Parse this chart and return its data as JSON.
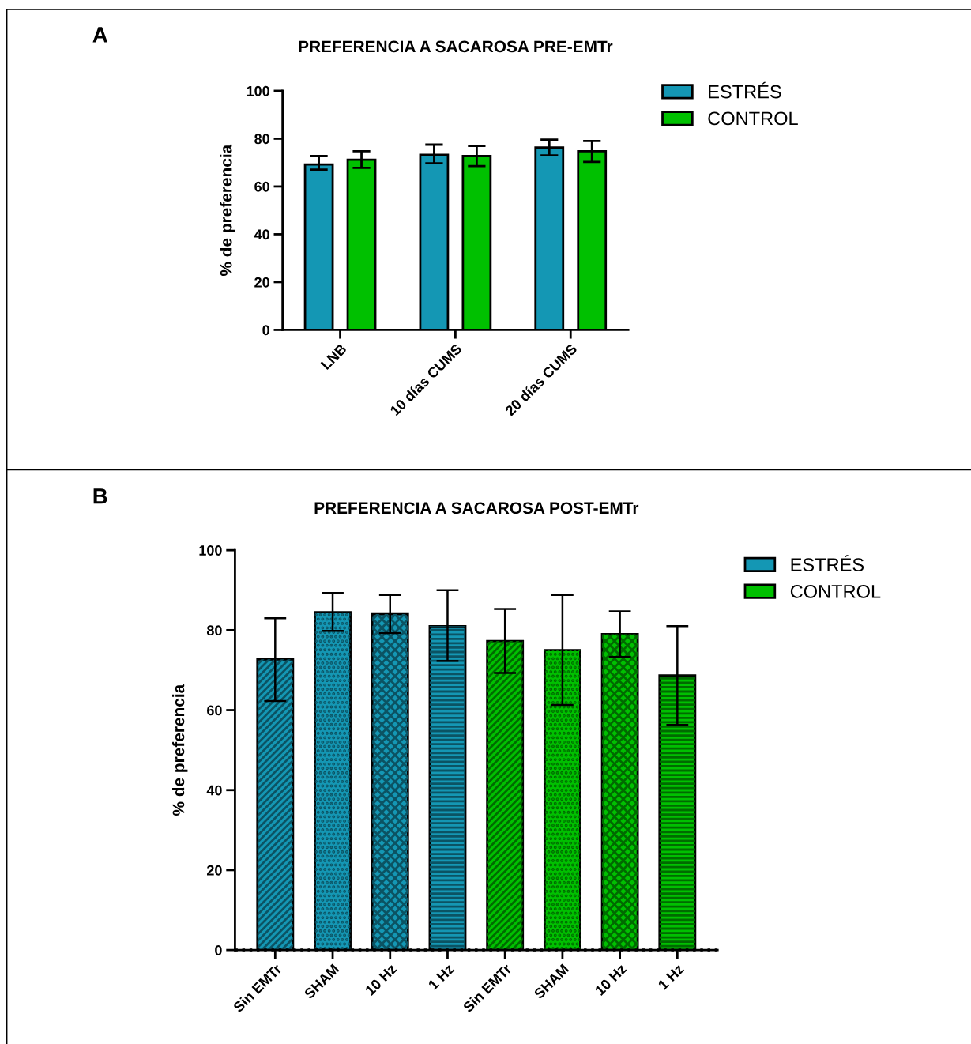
{
  "chart_data": [
    {
      "type": "bar",
      "title": "PREFERENCIA A SACAROSA PRE-EMTr",
      "ylabel": "% de preferencia",
      "annotations": [
        "A"
      ],
      "categories": [
        "LNB",
        "10 días CUMS",
        "20 días CUMS"
      ],
      "series": [
        {
          "name": "ESTRÉS",
          "color": "#1497b4",
          "values": [
            69.2,
            73.2,
            76.3
          ],
          "errors": [
            [
              67.0,
              72.7
            ],
            [
              69.7,
              77.5
            ],
            [
              73.0,
              79.6
            ]
          ]
        },
        {
          "name": "CONTROL",
          "color": "#00c000",
          "values": [
            71.2,
            72.7,
            74.7
          ],
          "errors": [
            [
              67.8,
              74.7
            ],
            [
              68.5,
              77.0
            ],
            [
              70.3,
              79.0
            ]
          ]
        }
      ],
      "ylim": [
        0,
        100
      ],
      "yticks": [
        0,
        20,
        40,
        60,
        80,
        100
      ],
      "legend": "top right",
      "grid": false
    },
    {
      "type": "bar",
      "title": "PREFERENCIA A SACAROSA POST-EMTr",
      "ylabel": "% de preferencia",
      "annotations": [
        "B"
      ],
      "categories": [
        "Sin EMTr",
        "SHAM",
        "10 Hz",
        "1 Hz",
        "Sin EMTr",
        "SHAM",
        "10 Hz",
        "1 Hz"
      ],
      "series": [
        {
          "name": "ESTRÉS",
          "color": "#1497b4",
          "values": [
            72.7,
            84.5,
            84.0,
            81.0,
            null,
            null,
            null,
            null
          ],
          "errors": [
            [
              62.3,
              83.0
            ],
            [
              79.8,
              89.3
            ],
            [
              79.3,
              88.8
            ],
            [
              72.3,
              90.0
            ],
            null,
            null,
            null,
            null
          ]
        },
        {
          "name": "CONTROL",
          "color": "#00c000",
          "values": [
            null,
            null,
            null,
            null,
            77.3,
            75.0,
            79.0,
            68.7
          ],
          "errors": [
            null,
            null,
            null,
            null,
            [
              69.3,
              85.3
            ],
            [
              61.3,
              88.8
            ],
            [
              73.3,
              84.7
            ],
            [
              56.3,
              81.0
            ]
          ]
        }
      ],
      "ref_lines": [
        {
          "axis": "y",
          "value": 0,
          "line_style": "dotted",
          "color": "#000000"
        }
      ],
      "ylim": [
        0,
        100
      ],
      "yticks": [
        0,
        20,
        40,
        60,
        80,
        100
      ],
      "legend": "top right",
      "grid": false
    }
  ]
}
